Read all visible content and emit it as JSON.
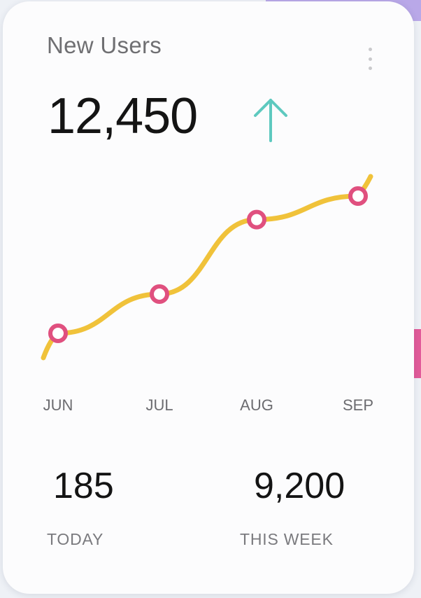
{
  "card": {
    "title": "New Users",
    "value": "12,450",
    "trend_icon": "arrow-up-icon",
    "menu_icon": "kebab-menu-icon"
  },
  "chart_data": {
    "type": "line",
    "categories": [
      "JUN",
      "JUL",
      "AUG",
      "SEP"
    ],
    "values": [
      1.0,
      2.0,
      3.9,
      4.5
    ],
    "ylim": [
      0,
      5
    ],
    "grid": false,
    "line_color": "#f0c23a",
    "marker_color": "#e0507f"
  },
  "stats": [
    {
      "value": "185",
      "label": "TODAY"
    },
    {
      "value": "9,200",
      "label": "THIS WEEK"
    }
  ],
  "colors": {
    "trend_arrow": "#5ec9bf",
    "title": "#6f6f72",
    "value": "#141414"
  }
}
